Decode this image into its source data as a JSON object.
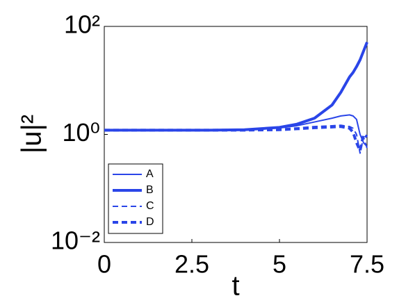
{
  "chart_data": {
    "type": "line",
    "xlabel": "t",
    "ylabel": "|u|²",
    "log_y": true,
    "x": [
      0,
      1,
      2,
      3,
      4,
      5,
      5.5,
      6,
      6.5,
      6.75,
      7,
      7.1,
      7.2,
      7.3,
      7.4,
      7.5
    ],
    "series": [
      {
        "name": "A",
        "color": "#2a45e8",
        "width": 2,
        "dash": false,
        "values": [
          1.2,
          1.2,
          1.2,
          1.2,
          1.22,
          1.32,
          1.45,
          1.7,
          2.0,
          2.2,
          2.3,
          2.2,
          1.9,
          1.0,
          0.7,
          0.6
        ]
      },
      {
        "name": "B",
        "color": "#2a45e8",
        "width": 4,
        "dash": false,
        "values": [
          1.2,
          1.2,
          1.2,
          1.2,
          1.22,
          1.35,
          1.55,
          2.0,
          3.5,
          6,
          11.6,
          14,
          18,
          24,
          35,
          51
        ]
      },
      {
        "name": "C",
        "color": "#2a45e8",
        "width": 2,
        "dash": true,
        "values": [
          1.2,
          1.2,
          1.2,
          1.2,
          1.21,
          1.26,
          1.32,
          1.4,
          1.45,
          1.48,
          1.4,
          1.3,
          1.0,
          0.45,
          0.9,
          0.55
        ]
      },
      {
        "name": "D",
        "color": "#2a45e8",
        "width": 4,
        "dash": true,
        "values": [
          1.2,
          1.2,
          1.2,
          1.2,
          1.2,
          1.22,
          1.27,
          1.33,
          1.37,
          1.4,
          1.3,
          1.1,
          0.7,
          0.5,
          1.0,
          0.9
        ]
      }
    ],
    "xlim": [
      0,
      7.5
    ],
    "xticks": [
      0,
      2.5,
      5,
      7.5
    ],
    "ylim": [
      0.01,
      100
    ],
    "yticks": [
      {
        "value": 0.01,
        "label": "10⁻²"
      },
      {
        "value": 1,
        "label": "10⁰"
      },
      {
        "value": 100,
        "label": "10²"
      }
    ],
    "legend": "lower left",
    "grid": false
  }
}
